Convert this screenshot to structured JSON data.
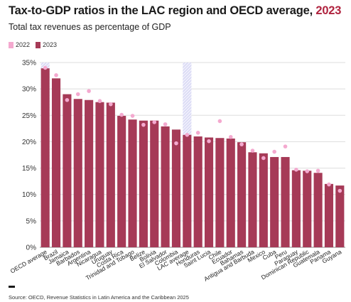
{
  "header": {
    "title_main": "Tax-to-GDP ratios in the LAC region and OECD average, ",
    "title_year": "2023",
    "subtitle": "Total tax revenues as percentage of GDP"
  },
  "legend": {
    "items": [
      {
        "label": "2022",
        "color": "#f4a9cf"
      },
      {
        "label": "2023",
        "color": "#a63a57"
      }
    ]
  },
  "chart_data": {
    "type": "bar",
    "categories": [
      "OECD average",
      "Brazil",
      "Jamaica",
      "Barbados",
      "Argentina",
      "Nicaragua",
      "Uruguay",
      "Costa Rica",
      "Trinidad and Tobago",
      "Belize",
      "Bolivia",
      "El Salvador",
      "Colombia",
      "LAC average",
      "Honduras",
      "Saint Lucia",
      "Chile",
      "Ecuador",
      "Bahamas",
      "Antigua and Barbuda",
      "Mexico",
      "Cuba",
      "Peru",
      "Paraguay",
      "Dominican Republic",
      "Guatemala",
      "Panama",
      "Guyana"
    ],
    "series": [
      {
        "name": "2023",
        "values": [
          33.9,
          32.0,
          29.0,
          28.1,
          27.9,
          27.5,
          27.4,
          24.9,
          24.2,
          24.0,
          24.0,
          22.9,
          22.3,
          21.3,
          21.0,
          20.8,
          20.7,
          20.6,
          19.9,
          18.0,
          17.8,
          17.1,
          17.1,
          14.6,
          14.5,
          14.1,
          12.0,
          11.7
        ]
      },
      {
        "name": "2022",
        "values": [
          34.0,
          32.6,
          27.9,
          29.0,
          29.6,
          27.7,
          27.1,
          25.1,
          24.9,
          23.2,
          23.7,
          23.3,
          19.7,
          21.3,
          21.7,
          20.1,
          23.9,
          20.9,
          19.5,
          18.3,
          16.9,
          18.1,
          19.1,
          14.7,
          14.4,
          14.5,
          11.9,
          10.7
        ]
      }
    ],
    "highlighted": [
      "OECD average",
      "LAC average"
    ],
    "yticks": [
      "0%",
      "5%",
      "10%",
      "15%",
      "20%",
      "25%",
      "30%",
      "35%"
    ],
    "ylim": [
      0,
      35
    ],
    "colors": {
      "bar_2023": "#a63a57",
      "dot_2022": "#f4a9cf",
      "highlight_hatch": "#c5c5ee",
      "grid": "#dddddd"
    }
  },
  "footer": {
    "source": "Source: OECD, Revenue Statistics in Latin America and the Caribbean 2025"
  }
}
